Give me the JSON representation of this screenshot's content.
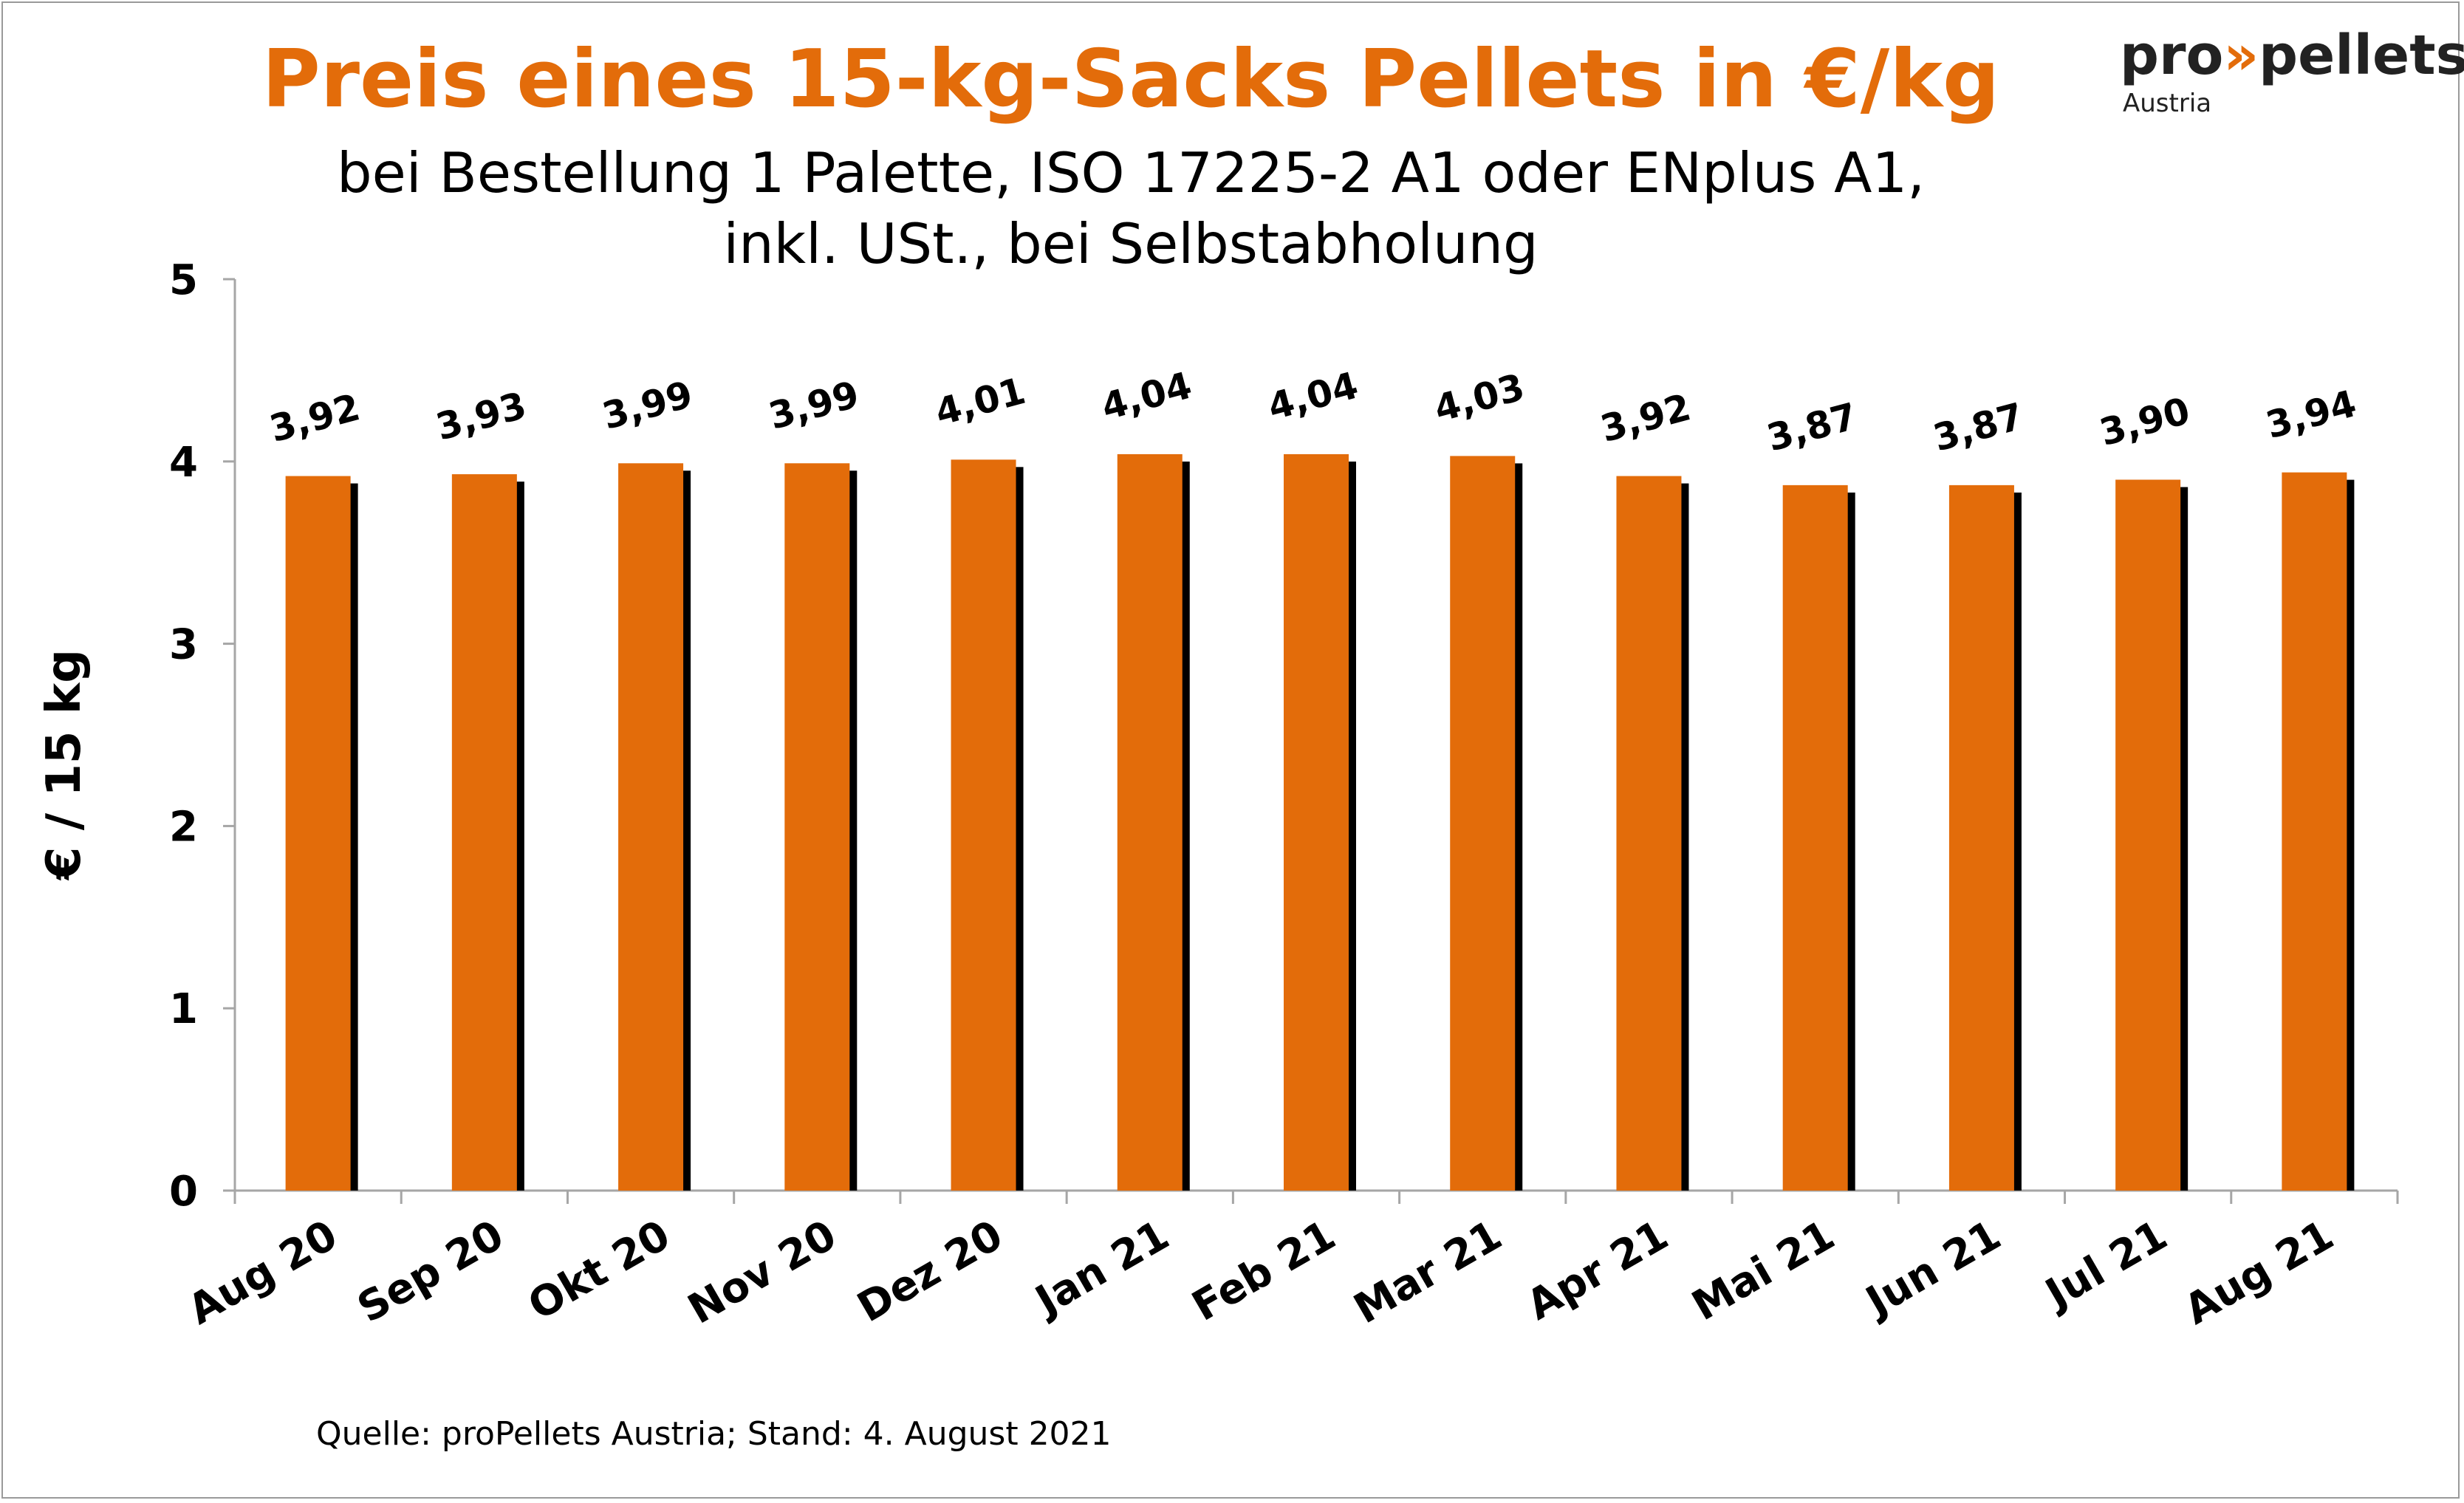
{
  "header": {
    "title": "Preis eines 15-kg-Sacks Pellets in €/kg",
    "subtitle_line1": "bei Bestellung 1 Palette, ISO 17225-2 A1 oder ENplus A1,",
    "subtitle_line2": "inkl. USt., bei Selbstabholung"
  },
  "logo": {
    "prefix": "pro",
    "chevrons": "»",
    "name": "pellets",
    "country": "Austria"
  },
  "source": "Quelle: proPellets Austria; Stand: 4. August 2021",
  "colors": {
    "bar": "#e36c0a",
    "shadow": "#000000",
    "title": "#e36c0a",
    "axis": "#a6a6a6"
  },
  "chart_data": {
    "type": "bar",
    "title": "Preis eines 15-kg-Sacks Pellets in €/kg",
    "subtitle": "bei Bestellung 1 Palette, ISO 17225-2 A1 oder ENplus A1, inkl. USt., bei Selbstabholung",
    "xlabel": "",
    "ylabel": "€ / 15 kg",
    "ylim": [
      0,
      5
    ],
    "yticks": [
      0,
      1,
      2,
      3,
      4,
      5
    ],
    "grid": false,
    "legend": "none",
    "categories": [
      "Aug 20",
      "Sep 20",
      "Okt 20",
      "Nov 20",
      "Dez 20",
      "Jan 21",
      "Feb 21",
      "Mar 21",
      "Apr 21",
      "Mai 21",
      "Jun 21",
      "Jul 21",
      "Aug 21"
    ],
    "values": [
      3.92,
      3.93,
      3.99,
      3.99,
      4.01,
      4.04,
      4.04,
      4.03,
      3.92,
      3.87,
      3.87,
      3.9,
      3.94
    ],
    "data_labels": [
      "3,92",
      "3,93",
      "3,99",
      "3,99",
      "4,01",
      "4,04",
      "4,04",
      "4,03",
      "3,92",
      "3,87",
      "3,87",
      "3,90",
      "3,94"
    ]
  }
}
